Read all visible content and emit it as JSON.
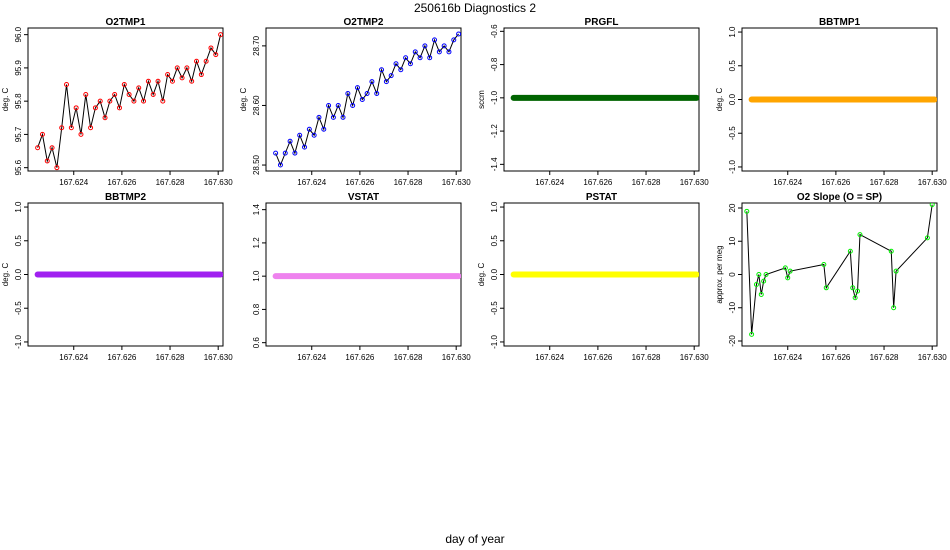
{
  "figure": {
    "title": "250616b   Diagnostics 2",
    "xlabel": "day of year"
  },
  "chart_data": [
    {
      "type": "line",
      "title": "O2TMP1",
      "ylabel": "deg. C",
      "color": "#ff0000",
      "markers": "open-circle",
      "xlim": [
        167.6221,
        167.6302
      ],
      "ylim": [
        95.59,
        96.02
      ],
      "xticks": [
        167.624,
        167.626,
        167.628,
        167.63
      ],
      "yticks": [
        95.6,
        95.7,
        95.8,
        95.9,
        96.0
      ],
      "xtick_labels": [
        "167.624",
        "167.626",
        "167.628",
        "167.630"
      ],
      "ytick_labels": [
        "95.6",
        "95.7",
        "95.8",
        "95.9",
        "96.0"
      ],
      "series": [
        {
          "x": [
            167.6225,
            167.6227,
            167.6229,
            167.6231,
            167.6233,
            167.6235,
            167.6237,
            167.6239,
            167.6241,
            167.6243,
            167.6245,
            167.6247,
            167.6249,
            167.6251,
            167.6253,
            167.6255,
            167.6257,
            167.6259,
            167.6261,
            167.6263,
            167.6265,
            167.6267,
            167.6269,
            167.6271,
            167.6273,
            167.6275,
            167.6277,
            167.6279,
            167.6281,
            167.6283,
            167.6285,
            167.6287,
            167.6289,
            167.6291,
            167.6293,
            167.6295,
            167.6297,
            167.6299,
            167.6301
          ],
          "y": [
            95.66,
            95.7,
            95.62,
            95.66,
            95.6,
            95.72,
            95.85,
            95.72,
            95.78,
            95.7,
            95.82,
            95.72,
            95.78,
            95.8,
            95.75,
            95.8,
            95.82,
            95.78,
            95.85,
            95.82,
            95.8,
            95.84,
            95.8,
            95.86,
            95.82,
            95.86,
            95.8,
            95.88,
            95.86,
            95.9,
            95.87,
            95.9,
            95.86,
            95.92,
            95.88,
            95.92,
            95.96,
            95.94,
            96.0
          ]
        }
      ]
    },
    {
      "type": "line",
      "title": "O2TMP2",
      "ylabel": "deg. C",
      "color": "#0000ff",
      "markers": "open-circle",
      "xlim": [
        167.6221,
        167.6302
      ],
      "ylim": [
        28.49,
        28.73
      ],
      "xticks": [
        167.624,
        167.626,
        167.628,
        167.63
      ],
      "yticks": [
        28.5,
        28.6,
        28.7
      ],
      "xtick_labels": [
        "167.624",
        "167.626",
        "167.628",
        "167.630"
      ],
      "ytick_labels": [
        "28.50",
        "28.60",
        "28.70"
      ],
      "series": [
        {
          "x": [
            167.6225,
            167.6227,
            167.6229,
            167.6231,
            167.6233,
            167.6235,
            167.6237,
            167.6239,
            167.6241,
            167.6243,
            167.6245,
            167.6247,
            167.6249,
            167.6251,
            167.6253,
            167.6255,
            167.6257,
            167.6259,
            167.6261,
            167.6263,
            167.6265,
            167.6267,
            167.6269,
            167.6271,
            167.6273,
            167.6275,
            167.6277,
            167.6279,
            167.6281,
            167.6283,
            167.6285,
            167.6287,
            167.6289,
            167.6291,
            167.6293,
            167.6295,
            167.6297,
            167.6299,
            167.6301
          ],
          "y": [
            28.52,
            28.5,
            28.52,
            28.54,
            28.52,
            28.55,
            28.53,
            28.56,
            28.55,
            28.58,
            28.56,
            28.6,
            28.58,
            28.6,
            28.58,
            28.62,
            28.6,
            28.63,
            28.61,
            28.62,
            28.64,
            28.62,
            28.66,
            28.64,
            28.65,
            28.67,
            28.66,
            28.68,
            28.67,
            28.69,
            28.68,
            28.7,
            28.68,
            28.71,
            28.69,
            28.7,
            28.69,
            28.71,
            28.72
          ]
        }
      ]
    },
    {
      "type": "line",
      "title": "PRGFL",
      "ylabel": "sccm",
      "color": "#006400",
      "markers": "filled-thick",
      "xlim": [
        167.6221,
        167.6302
      ],
      "ylim": [
        -1.44,
        -0.58
      ],
      "xticks": [
        167.624,
        167.626,
        167.628,
        167.63
      ],
      "yticks": [
        -1.4,
        -1.2,
        -1.0,
        -0.8,
        -0.6
      ],
      "xtick_labels": [
        "167.624",
        "167.626",
        "167.628",
        "167.630"
      ],
      "ytick_labels": [
        "-1.4",
        "-1.2",
        "-1.0",
        "-0.8",
        "-0.6"
      ],
      "series": [
        {
          "x": [
            167.6225,
            167.6301
          ],
          "y": [
            -1.0,
            -1.0
          ]
        }
      ]
    },
    {
      "type": "line",
      "title": "BBTMP1",
      "ylabel": "deg. C",
      "color": "#ffa500",
      "markers": "filled-thick",
      "xlim": [
        167.6221,
        167.6302
      ],
      "ylim": [
        -1.06,
        1.06
      ],
      "xticks": [
        167.624,
        167.626,
        167.628,
        167.63
      ],
      "yticks": [
        -1.0,
        -0.5,
        0.0,
        0.5,
        1.0
      ],
      "xtick_labels": [
        "167.624",
        "167.626",
        "167.628",
        "167.630"
      ],
      "ytick_labels": [
        "-1.0",
        "-0.5",
        "0.0",
        "0.5",
        "1.0"
      ],
      "series": [
        {
          "x": [
            167.6225,
            167.6301
          ],
          "y": [
            0.0,
            0.0
          ]
        }
      ]
    },
    {
      "type": "line",
      "title": "BBTMP2",
      "ylabel": "deg. C",
      "color": "#a020f0",
      "markers": "filled-thick",
      "xlim": [
        167.6221,
        167.6302
      ],
      "ylim": [
        -1.06,
        1.06
      ],
      "xticks": [
        167.624,
        167.626,
        167.628,
        167.63
      ],
      "yticks": [
        -1.0,
        -0.5,
        0.0,
        0.5,
        1.0
      ],
      "xtick_labels": [
        "167.624",
        "167.626",
        "167.628",
        "167.630"
      ],
      "ytick_labels": [
        "-1.0",
        "-0.5",
        "0.0",
        "0.5",
        "1.0"
      ],
      "series": [
        {
          "x": [
            167.6225,
            167.6301
          ],
          "y": [
            0.0,
            0.0
          ]
        }
      ]
    },
    {
      "type": "line",
      "title": "VSTAT",
      "ylabel": "",
      "color": "#ee82ee",
      "markers": "filled-thick",
      "xlim": [
        167.6221,
        167.6302
      ],
      "ylim": [
        0.58,
        1.44
      ],
      "xticks": [
        167.624,
        167.626,
        167.628,
        167.63
      ],
      "yticks": [
        0.6,
        0.8,
        1.0,
        1.2,
        1.4
      ],
      "xtick_labels": [
        "167.624",
        "167.626",
        "167.628",
        "167.630"
      ],
      "ytick_labels": [
        "0.6",
        "0.8",
        "1.0",
        "1.2",
        "1.4"
      ],
      "series": [
        {
          "x": [
            167.6225,
            167.6301
          ],
          "y": [
            1.0,
            1.0
          ]
        }
      ]
    },
    {
      "type": "line",
      "title": "PSTAT",
      "ylabel": "deg. C",
      "color": "#ffff00",
      "markers": "filled-thick",
      "xlim": [
        167.6221,
        167.6302
      ],
      "ylim": [
        -1.06,
        1.06
      ],
      "xticks": [
        167.624,
        167.626,
        167.628,
        167.63
      ],
      "yticks": [
        -1.0,
        -0.5,
        0.0,
        0.5,
        1.0
      ],
      "xtick_labels": [
        "167.624",
        "167.626",
        "167.628",
        "167.630"
      ],
      "ytick_labels": [
        "-1.0",
        "-0.5",
        "0.0",
        "0.5",
        "1.0"
      ],
      "series": [
        {
          "x": [
            167.6225,
            167.6301
          ],
          "y": [
            0.0,
            0.0
          ]
        }
      ]
    },
    {
      "type": "line",
      "title": "O2 Slope (O = SP)",
      "ylabel": "approx. per meg",
      "color": "#00ee00",
      "markers": "open-circle",
      "xlim": [
        167.6221,
        167.6302
      ],
      "ylim": [
        -21.5,
        21.5
      ],
      "xticks": [
        167.624,
        167.626,
        167.628,
        167.63
      ],
      "yticks": [
        -20,
        -10,
        0,
        10,
        20
      ],
      "xtick_labels": [
        "167.624",
        "167.626",
        "167.628",
        "167.630"
      ],
      "ytick_labels": [
        "-20",
        "-10",
        "0",
        "10",
        "20"
      ],
      "series": [
        {
          "x": [
            167.6223,
            167.6225,
            167.6227,
            167.6228,
            167.6229,
            167.623,
            167.6231,
            167.6239,
            167.624,
            167.6241,
            167.6255,
            167.6256,
            167.6266,
            167.6267,
            167.6268,
            167.6269,
            167.627,
            167.6283,
            167.6284,
            167.6285,
            167.6298,
            167.63
          ],
          "y": [
            19,
            -18,
            -3,
            0,
            -6,
            -2,
            0,
            2,
            -1,
            1,
            3,
            -4,
            7,
            -4,
            -7,
            -5,
            12,
            7,
            -10,
            1,
            11,
            21
          ]
        }
      ]
    }
  ]
}
